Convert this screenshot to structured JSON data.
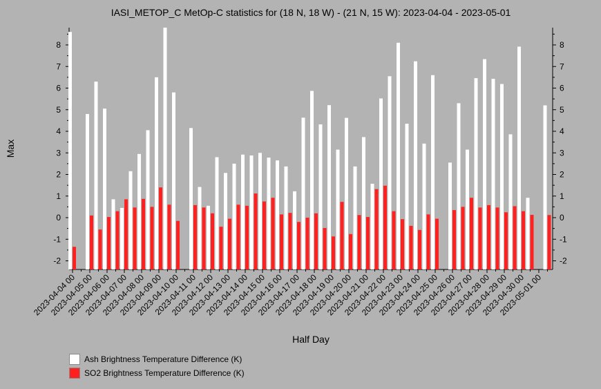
{
  "chart_data": {
    "type": "bar",
    "title": "IASI_METOP_C MetOp-C statistics for (18 N, 18 W) - (21 N, 15 W): 2023-04-04 - 2023-05-01",
    "xlabel": "Half Day",
    "ylabel": "Max",
    "ylim": [
      -2.4,
      8.8
    ],
    "yticks": [
      -2,
      -1,
      0,
      1,
      2,
      3,
      4,
      5,
      6,
      7,
      8
    ],
    "x_ticks": [
      "2023-04-04 00",
      "2023-04-05 00",
      "2023-04-06 00",
      "2023-04-07 00",
      "2023-04-08 00",
      "2023-04-09 00",
      "2023-04-10 00",
      "2023-04-11 00",
      "2023-04-12 00",
      "2023-04-13 00",
      "2023-04-14 00",
      "2023-04-15 00",
      "2023-04-16 00",
      "2023-04-17 00",
      "2023-04-18 00",
      "2023-04-19 00",
      "2023-04-20 00",
      "2023-04-21 00",
      "2023-04-22 00",
      "2023-04-23 00",
      "2023-04-24 00",
      "2023-04-25 00",
      "2023-04-26 00",
      "2023-04-27 00",
      "2023-04-28 00",
      "2023-04-29 00",
      "2023-04-30 00",
      "2023-05-01 00"
    ],
    "grid": false,
    "legend_position": "bottom-left",
    "series": [
      {
        "name": "Ash Brightness Temperature Difference (K)",
        "color": "#ffffff",
        "values": [
          8.6,
          null,
          4.8,
          6.3,
          5.05,
          0.85,
          0.45,
          2.15,
          2.95,
          4.05,
          6.5,
          8.8,
          5.8,
          null,
          4.15,
          1.42,
          0.55,
          2.8,
          2.07,
          2.5,
          2.92,
          2.88,
          3.0,
          2.78,
          2.65,
          2.37,
          1.22,
          4.63,
          5.87,
          4.32,
          5.21,
          3.15,
          4.62,
          2.37,
          3.73,
          1.57,
          5.52,
          6.55,
          8.1,
          4.35,
          7.24,
          3.43,
          6.6,
          null,
          2.55,
          5.3,
          3.15,
          6.46,
          7.34,
          6.43,
          6.19,
          3.86,
          7.92,
          0.92,
          null,
          5.2
        ]
      },
      {
        "name": "SO2 Brightness Temperature Difference (K)",
        "color": "#ff2020",
        "values": [
          -1.35,
          null,
          0.1,
          -0.55,
          0.03,
          0.3,
          0.85,
          0.47,
          0.87,
          0.5,
          1.4,
          0.6,
          -0.15,
          null,
          0.58,
          0.47,
          0.2,
          -0.42,
          -0.05,
          0.6,
          0.55,
          1.12,
          0.75,
          0.92,
          0.15,
          0.22,
          -0.2,
          0.0,
          0.2,
          -0.48,
          -0.87,
          0.73,
          -0.76,
          0.12,
          0.03,
          1.32,
          1.48,
          0.3,
          -0.07,
          -0.38,
          -0.57,
          0.15,
          -0.05,
          null,
          0.35,
          0.5,
          0.92,
          0.47,
          0.58,
          0.47,
          0.25,
          0.53,
          0.3,
          0.13,
          null,
          0.12
        ]
      }
    ]
  }
}
